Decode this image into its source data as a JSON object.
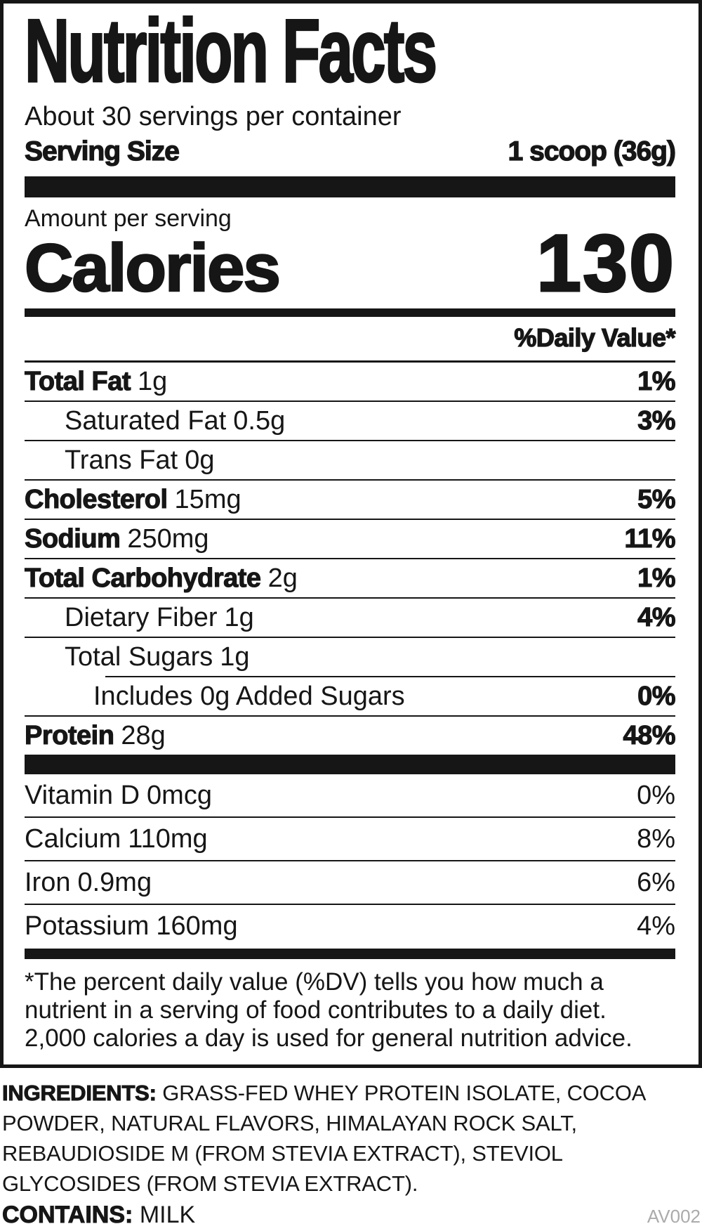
{
  "label": {
    "title": "Nutrition Facts",
    "servings_per_container": "About 30 servings per container",
    "serving_size_label": "Serving Size",
    "serving_size_value": "1 scoop (36g)",
    "amount_per_serving_label": "Amount per serving",
    "calories_label": "Calories",
    "calories_value": "130",
    "daily_value_header": "%Daily Value*"
  },
  "nutrients": [
    {
      "name": "Total Fat",
      "amount": "1g",
      "dv": "1%"
    },
    {
      "name": "Saturated Fat",
      "amount": "0.5g",
      "dv": "3%"
    },
    {
      "name": "Trans Fat",
      "amount": "0g",
      "dv": ""
    },
    {
      "name": "Cholesterol",
      "amount": "15mg",
      "dv": "5%"
    },
    {
      "name": "Sodium",
      "amount": "250mg",
      "dv": "11%"
    },
    {
      "name": "Total Carbohydrate",
      "amount": "2g",
      "dv": "1%"
    },
    {
      "name": "Dietary Fiber",
      "amount": "1g",
      "dv": "4%"
    },
    {
      "name": "Total Sugars",
      "amount": "1g",
      "dv": ""
    },
    {
      "name": "Includes 0g Added Sugars",
      "dv": "0%"
    },
    {
      "name": "Protein",
      "amount": "28g",
      "dv": "48%"
    }
  ],
  "vitamins": [
    {
      "name": "Vitamin D",
      "amount": "0mcg",
      "dv": "0%"
    },
    {
      "name": "Calcium",
      "amount": "110mg",
      "dv": "8%"
    },
    {
      "name": "Iron",
      "amount": "0.9mg",
      "dv": "6%"
    },
    {
      "name": "Potassium",
      "amount": "160mg",
      "dv": "4%"
    }
  ],
  "footnote_lines": [
    "*The percent daily value (%DV) tells you how much a",
    "nutrient in a serving of food contributes to a daily diet.",
    "2,000 calories a day is used for general nutrition advice."
  ],
  "ingredients": {
    "label": "INGREDIENTS:",
    "text": "GRASS-FED WHEY PROTEIN ISOLATE, COCOA POWDER, NATURAL FLAVORS, HIMALAYAN ROCK SALT, REBAUDIOSIDE M (FROM STEVIA EXTRACT), STEVIOL GLYCOSIDES (FROM STEVIA EXTRACT)."
  },
  "contains": {
    "label": "CONTAINS:",
    "value": "MILK"
  },
  "footer_code": "AV002",
  "colors": {
    "ink": "#161616",
    "muted": "#ababab"
  }
}
